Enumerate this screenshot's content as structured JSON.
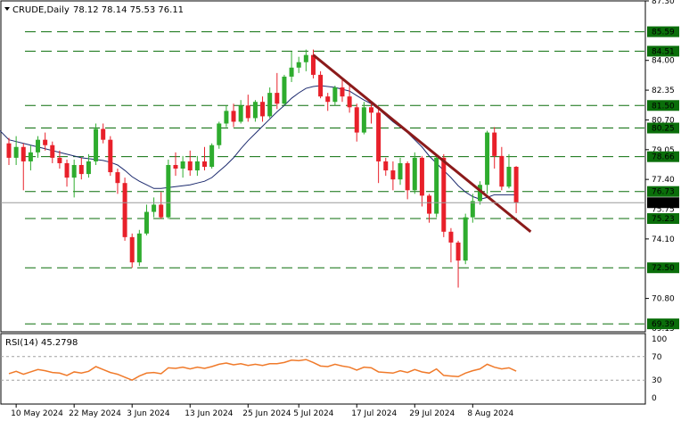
{
  "header": {
    "symbol": "CRUDE,Daily",
    "ohlc": "78.12 78.14 75.53 76.11"
  },
  "rsi_header": "RSI(14) 45.2798",
  "colors": {
    "bull": "#2eac2e",
    "bear": "#e8202a",
    "ma": "#1c2a6e",
    "trendline": "#8b1a1a",
    "level": "#0a6e0a",
    "rsi": "#f07a2a",
    "last_price_bg": "#000000"
  },
  "chart_data": [
    {
      "type": "candlestick",
      "ylim": [
        68.95,
        87.3
      ],
      "price_axis_ticks": [
        "87.30",
        "84.00",
        "82.35",
        "80.70",
        "79.05",
        "77.40",
        "74.10",
        "70.80"
      ],
      "dim_ticks": [
        "75.75",
        "69.15"
      ],
      "level_labels": [
        "85.59",
        "84.51",
        "81.50",
        "80.25",
        "78.66",
        "76.73",
        "75.23",
        "72.50",
        "69.39"
      ],
      "levels": [
        85.59,
        84.51,
        81.5,
        80.25,
        78.66,
        76.73,
        75.23,
        72.5,
        69.39
      ],
      "last_price": "76.11",
      "last_value": 76.11,
      "date_labels": [
        "10 May 2024",
        "22 May 2024",
        "3 Jun 2024",
        "13 Jun 2024",
        "25 Jun 2024",
        "5 Jul 2024",
        "17 Jul 2024",
        "29 Jul 2024",
        "8 Aug 2024"
      ],
      "date_index": [
        1,
        9,
        17,
        25,
        33,
        40,
        48,
        56,
        64
      ],
      "trendline": [
        [
          42,
          84.3
        ],
        [
          72,
          74.5
        ]
      ],
      "candles": [
        [
          79.4,
          79.7,
          78.2,
          78.6
        ],
        [
          78.6,
          79.8,
          78.2,
          79.2
        ],
        [
          79.2,
          79.4,
          76.8,
          78.4
        ],
        [
          78.4,
          79.3,
          77.9,
          78.9
        ],
        [
          78.9,
          79.8,
          78.6,
          79.6
        ],
        [
          79.6,
          80.0,
          79.0,
          79.3
        ],
        [
          79.3,
          79.5,
          78.3,
          78.6
        ],
        [
          78.6,
          79.0,
          78.0,
          78.3
        ],
        [
          78.3,
          78.5,
          77.0,
          77.5
        ],
        [
          77.5,
          78.5,
          76.4,
          78.2
        ],
        [
          78.2,
          78.6,
          77.4,
          77.7
        ],
        [
          77.7,
          78.8,
          77.5,
          78.4
        ],
        [
          78.4,
          80.5,
          78.2,
          80.2
        ],
        [
          80.2,
          80.5,
          79.4,
          79.6
        ],
        [
          79.6,
          79.8,
          77.6,
          77.8
        ],
        [
          77.8,
          78.0,
          76.6,
          77.2
        ],
        [
          77.2,
          77.5,
          74.0,
          74.2
        ],
        [
          74.2,
          74.4,
          72.5,
          72.8
        ],
        [
          72.8,
          74.6,
          72.6,
          74.4
        ],
        [
          74.4,
          76.0,
          74.3,
          75.6
        ],
        [
          75.6,
          76.4,
          75.3,
          76.0
        ],
        [
          76.0,
          76.7,
          75.2,
          75.3
        ],
        [
          75.3,
          78.5,
          75.2,
          78.2
        ],
        [
          78.2,
          78.9,
          77.6,
          78.0
        ],
        [
          78.0,
          78.7,
          77.5,
          78.4
        ],
        [
          78.4,
          79.0,
          77.6,
          77.9
        ],
        [
          77.9,
          78.7,
          77.6,
          78.4
        ],
        [
          78.4,
          79.2,
          77.9,
          78.1
        ],
        [
          78.1,
          79.4,
          78.0,
          79.3
        ],
        [
          79.3,
          80.6,
          79.1,
          80.5
        ],
        [
          80.5,
          81.5,
          80.3,
          81.2
        ],
        [
          81.2,
          81.6,
          80.3,
          80.6
        ],
        [
          80.6,
          81.8,
          80.5,
          81.5
        ],
        [
          81.5,
          82.1,
          80.6,
          80.8
        ],
        [
          80.8,
          81.8,
          80.6,
          81.7
        ],
        [
          81.7,
          82.0,
          80.6,
          80.9
        ],
        [
          80.9,
          82.5,
          80.8,
          82.2
        ],
        [
          82.2,
          83.3,
          81.3,
          81.6
        ],
        [
          81.6,
          83.2,
          81.5,
          83.1
        ],
        [
          83.1,
          84.5,
          82.8,
          83.6
        ],
        [
          83.6,
          84.2,
          83.3,
          83.9
        ],
        [
          83.9,
          84.6,
          83.4,
          84.3
        ],
        [
          84.3,
          84.6,
          83.0,
          83.2
        ],
        [
          83.2,
          83.4,
          81.9,
          82.0
        ],
        [
          82.0,
          82.2,
          81.2,
          81.7
        ],
        [
          81.7,
          82.6,
          81.5,
          82.5
        ],
        [
          82.5,
          82.9,
          81.7,
          82.0
        ],
        [
          82.0,
          82.7,
          81.1,
          81.4
        ],
        [
          81.4,
          81.6,
          79.5,
          80.0
        ],
        [
          80.0,
          81.7,
          79.9,
          81.4
        ],
        [
          81.4,
          81.6,
          80.5,
          81.1
        ],
        [
          81.1,
          81.3,
          77.2,
          78.4
        ],
        [
          78.4,
          78.6,
          77.6,
          77.9
        ],
        [
          77.9,
          78.4,
          76.8,
          77.4
        ],
        [
          77.4,
          78.6,
          77.1,
          78.3
        ],
        [
          78.3,
          78.4,
          76.3,
          76.8
        ],
        [
          76.8,
          78.9,
          76.6,
          78.6
        ],
        [
          78.6,
          78.7,
          75.9,
          76.5
        ],
        [
          76.5,
          76.6,
          75.0,
          75.5
        ],
        [
          75.5,
          78.8,
          75.3,
          78.6
        ],
        [
          78.6,
          78.8,
          74.2,
          74.5
        ],
        [
          74.5,
          74.7,
          72.8,
          73.9
        ],
        [
          73.9,
          74.0,
          71.4,
          72.9
        ],
        [
          72.9,
          75.5,
          72.7,
          75.3
        ],
        [
          75.3,
          76.6,
          75.0,
          76.2
        ],
        [
          76.2,
          77.3,
          76.0,
          77.1
        ],
        [
          77.1,
          80.1,
          76.6,
          80.0
        ],
        [
          80.0,
          80.3,
          78.0,
          78.7
        ],
        [
          78.7,
          79.2,
          76.8,
          77.0
        ],
        [
          77.0,
          78.8,
          76.9,
          78.1
        ],
        [
          78.1,
          78.14,
          75.53,
          76.11
        ]
      ],
      "ma": [
        79.6,
        79.5,
        79.4,
        79.3,
        79.2,
        79.1,
        79.0,
        78.9,
        78.8,
        78.7,
        78.6,
        78.55,
        78.5,
        78.45,
        78.35,
        78.2,
        77.9,
        77.55,
        77.3,
        77.1,
        76.9,
        76.9,
        76.95,
        77.0,
        77.05,
        77.1,
        77.2,
        77.3,
        77.5,
        77.85,
        78.2,
        78.6,
        79.1,
        79.55,
        79.95,
        80.35,
        80.75,
        81.15,
        81.5,
        81.9,
        82.2,
        82.45,
        82.55,
        82.6,
        82.55,
        82.5,
        82.4,
        82.3,
        82.05,
        81.8,
        81.6,
        81.3,
        80.95,
        80.6,
        80.3,
        80.0,
        79.6,
        79.2,
        78.7,
        78.3,
        77.9,
        77.5,
        77.05,
        76.7,
        76.45,
        76.3,
        76.4,
        76.55,
        76.55,
        76.55,
        76.55
      ],
      "rsi": {
        "ylim": [
          0,
          100
        ],
        "ticks": [
          "100",
          "70",
          "30",
          "0"
        ],
        "levels": [
          70,
          30
        ],
        "values": [
          41,
          45,
          40,
          44,
          48,
          46,
          43,
          42,
          38,
          44,
          42,
          45,
          53,
          48,
          43,
          40,
          35,
          30,
          37,
          42,
          43,
          41,
          51,
          50,
          52,
          49,
          52,
          50,
          53,
          57,
          59,
          56,
          58,
          55,
          57,
          55,
          58,
          58,
          60,
          64,
          63,
          65,
          60,
          54,
          53,
          57,
          54,
          52,
          47,
          52,
          51,
          44,
          43,
          42,
          46,
          43,
          48,
          44,
          42,
          49,
          38,
          37,
          36,
          42,
          46,
          49,
          57,
          52,
          49,
          51,
          45.28
        ]
      }
    }
  ]
}
